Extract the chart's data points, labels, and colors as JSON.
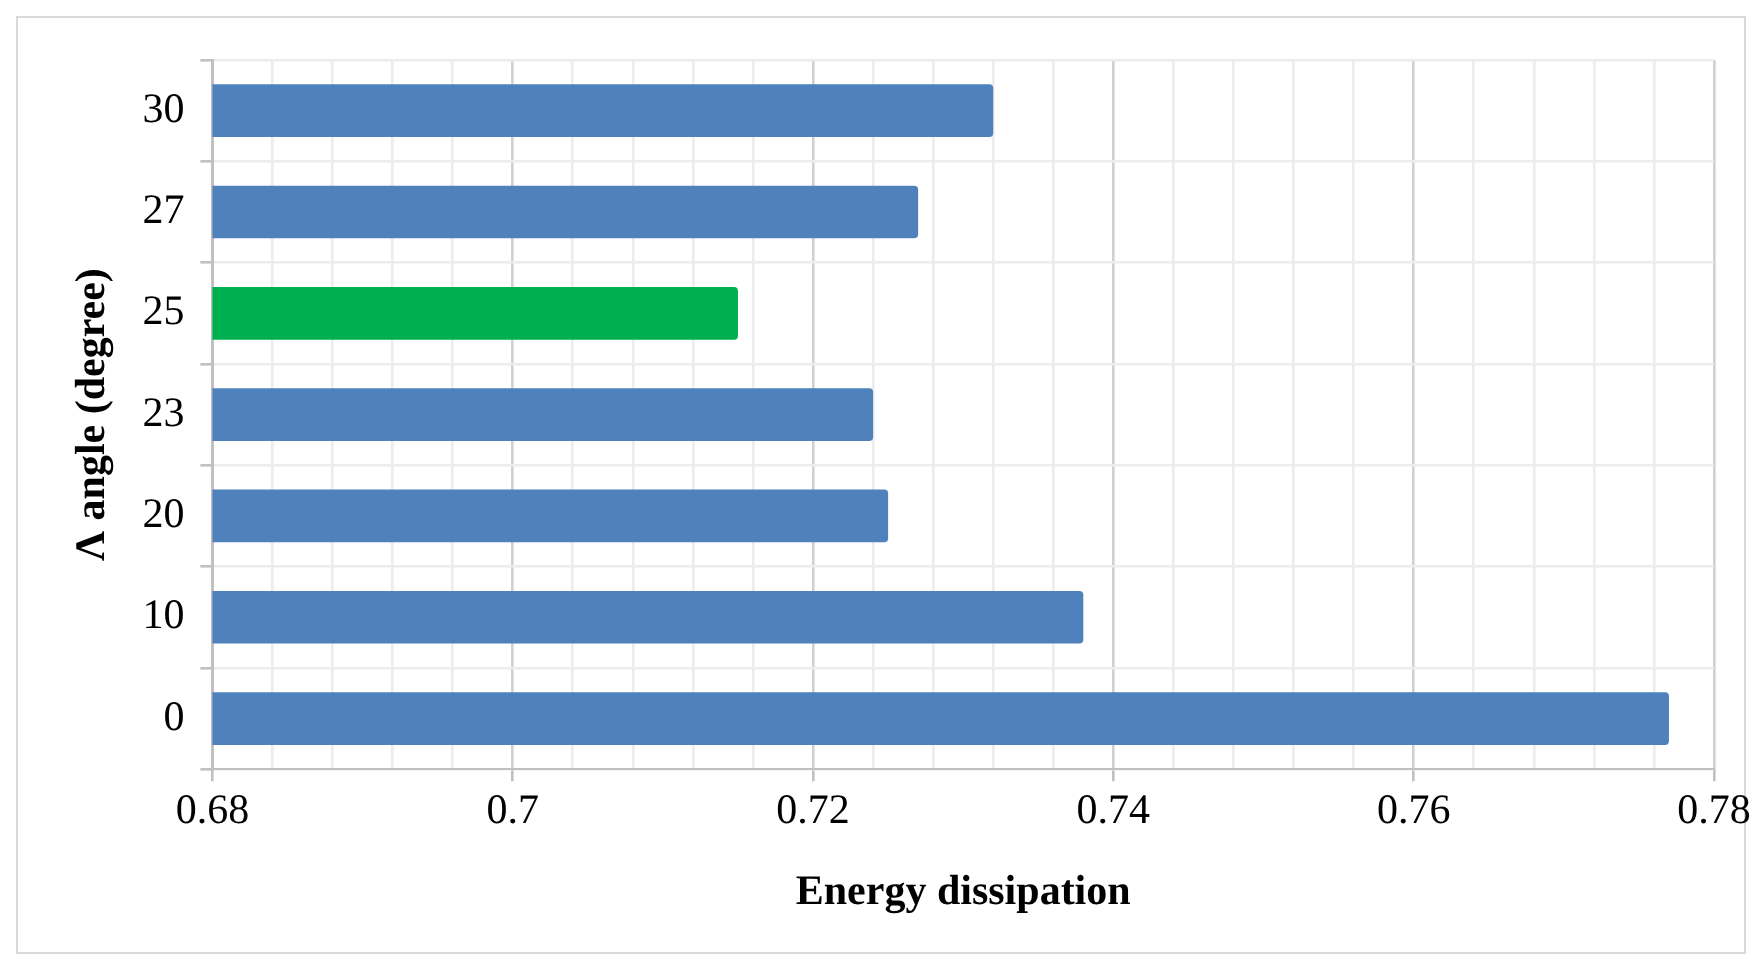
{
  "chart_data": {
    "type": "bar",
    "orientation": "horizontal",
    "xlabel": "Energy dissipation",
    "ylabel": "Λ angle (degree)",
    "categories": [
      "30",
      "27",
      "25",
      "23",
      "20",
      "10",
      "0"
    ],
    "series": [
      {
        "colors": [
          "#4f81bd",
          "#4f81bd",
          "#00b050",
          "#4f81bd",
          "#4f81bd",
          "#4f81bd",
          "#4f81bd"
        ],
        "values": [
          0.732,
          0.727,
          0.715,
          0.724,
          0.725,
          0.738,
          0.777
        ]
      }
    ],
    "xlim": [
      0.68,
      0.78
    ],
    "xticks": [
      0.68,
      {
        "value": 0.684,
        "label": null
      },
      {
        "value": 0.688,
        "label": null
      },
      {
        "value": 0.692,
        "label": null
      },
      {
        "value": 0.696,
        "label": null
      },
      {
        "value": 0.7,
        "label": "0.7"
      },
      {
        "value": 0.704,
        "label": null
      },
      {
        "value": 0.708,
        "label": null
      },
      {
        "value": 0.712,
        "label": null
      },
      {
        "value": 0.716,
        "label": null
      },
      0.72,
      {
        "value": 0.724,
        "label": null
      },
      {
        "value": 0.728,
        "label": null
      },
      {
        "value": 0.732,
        "label": null
      },
      {
        "value": 0.736,
        "label": null
      },
      0.74,
      {
        "value": 0.744,
        "label": null
      },
      {
        "value": 0.748,
        "label": null
      },
      {
        "value": 0.752,
        "label": null
      },
      {
        "value": 0.756,
        "label": null
      },
      0.76,
      {
        "value": 0.764,
        "label": null
      },
      {
        "value": 0.768,
        "label": null
      },
      {
        "value": 0.772,
        "label": null
      },
      {
        "value": 0.776,
        "label": null
      },
      0.78
    ],
    "grid": true,
    "legend": false
  }
}
